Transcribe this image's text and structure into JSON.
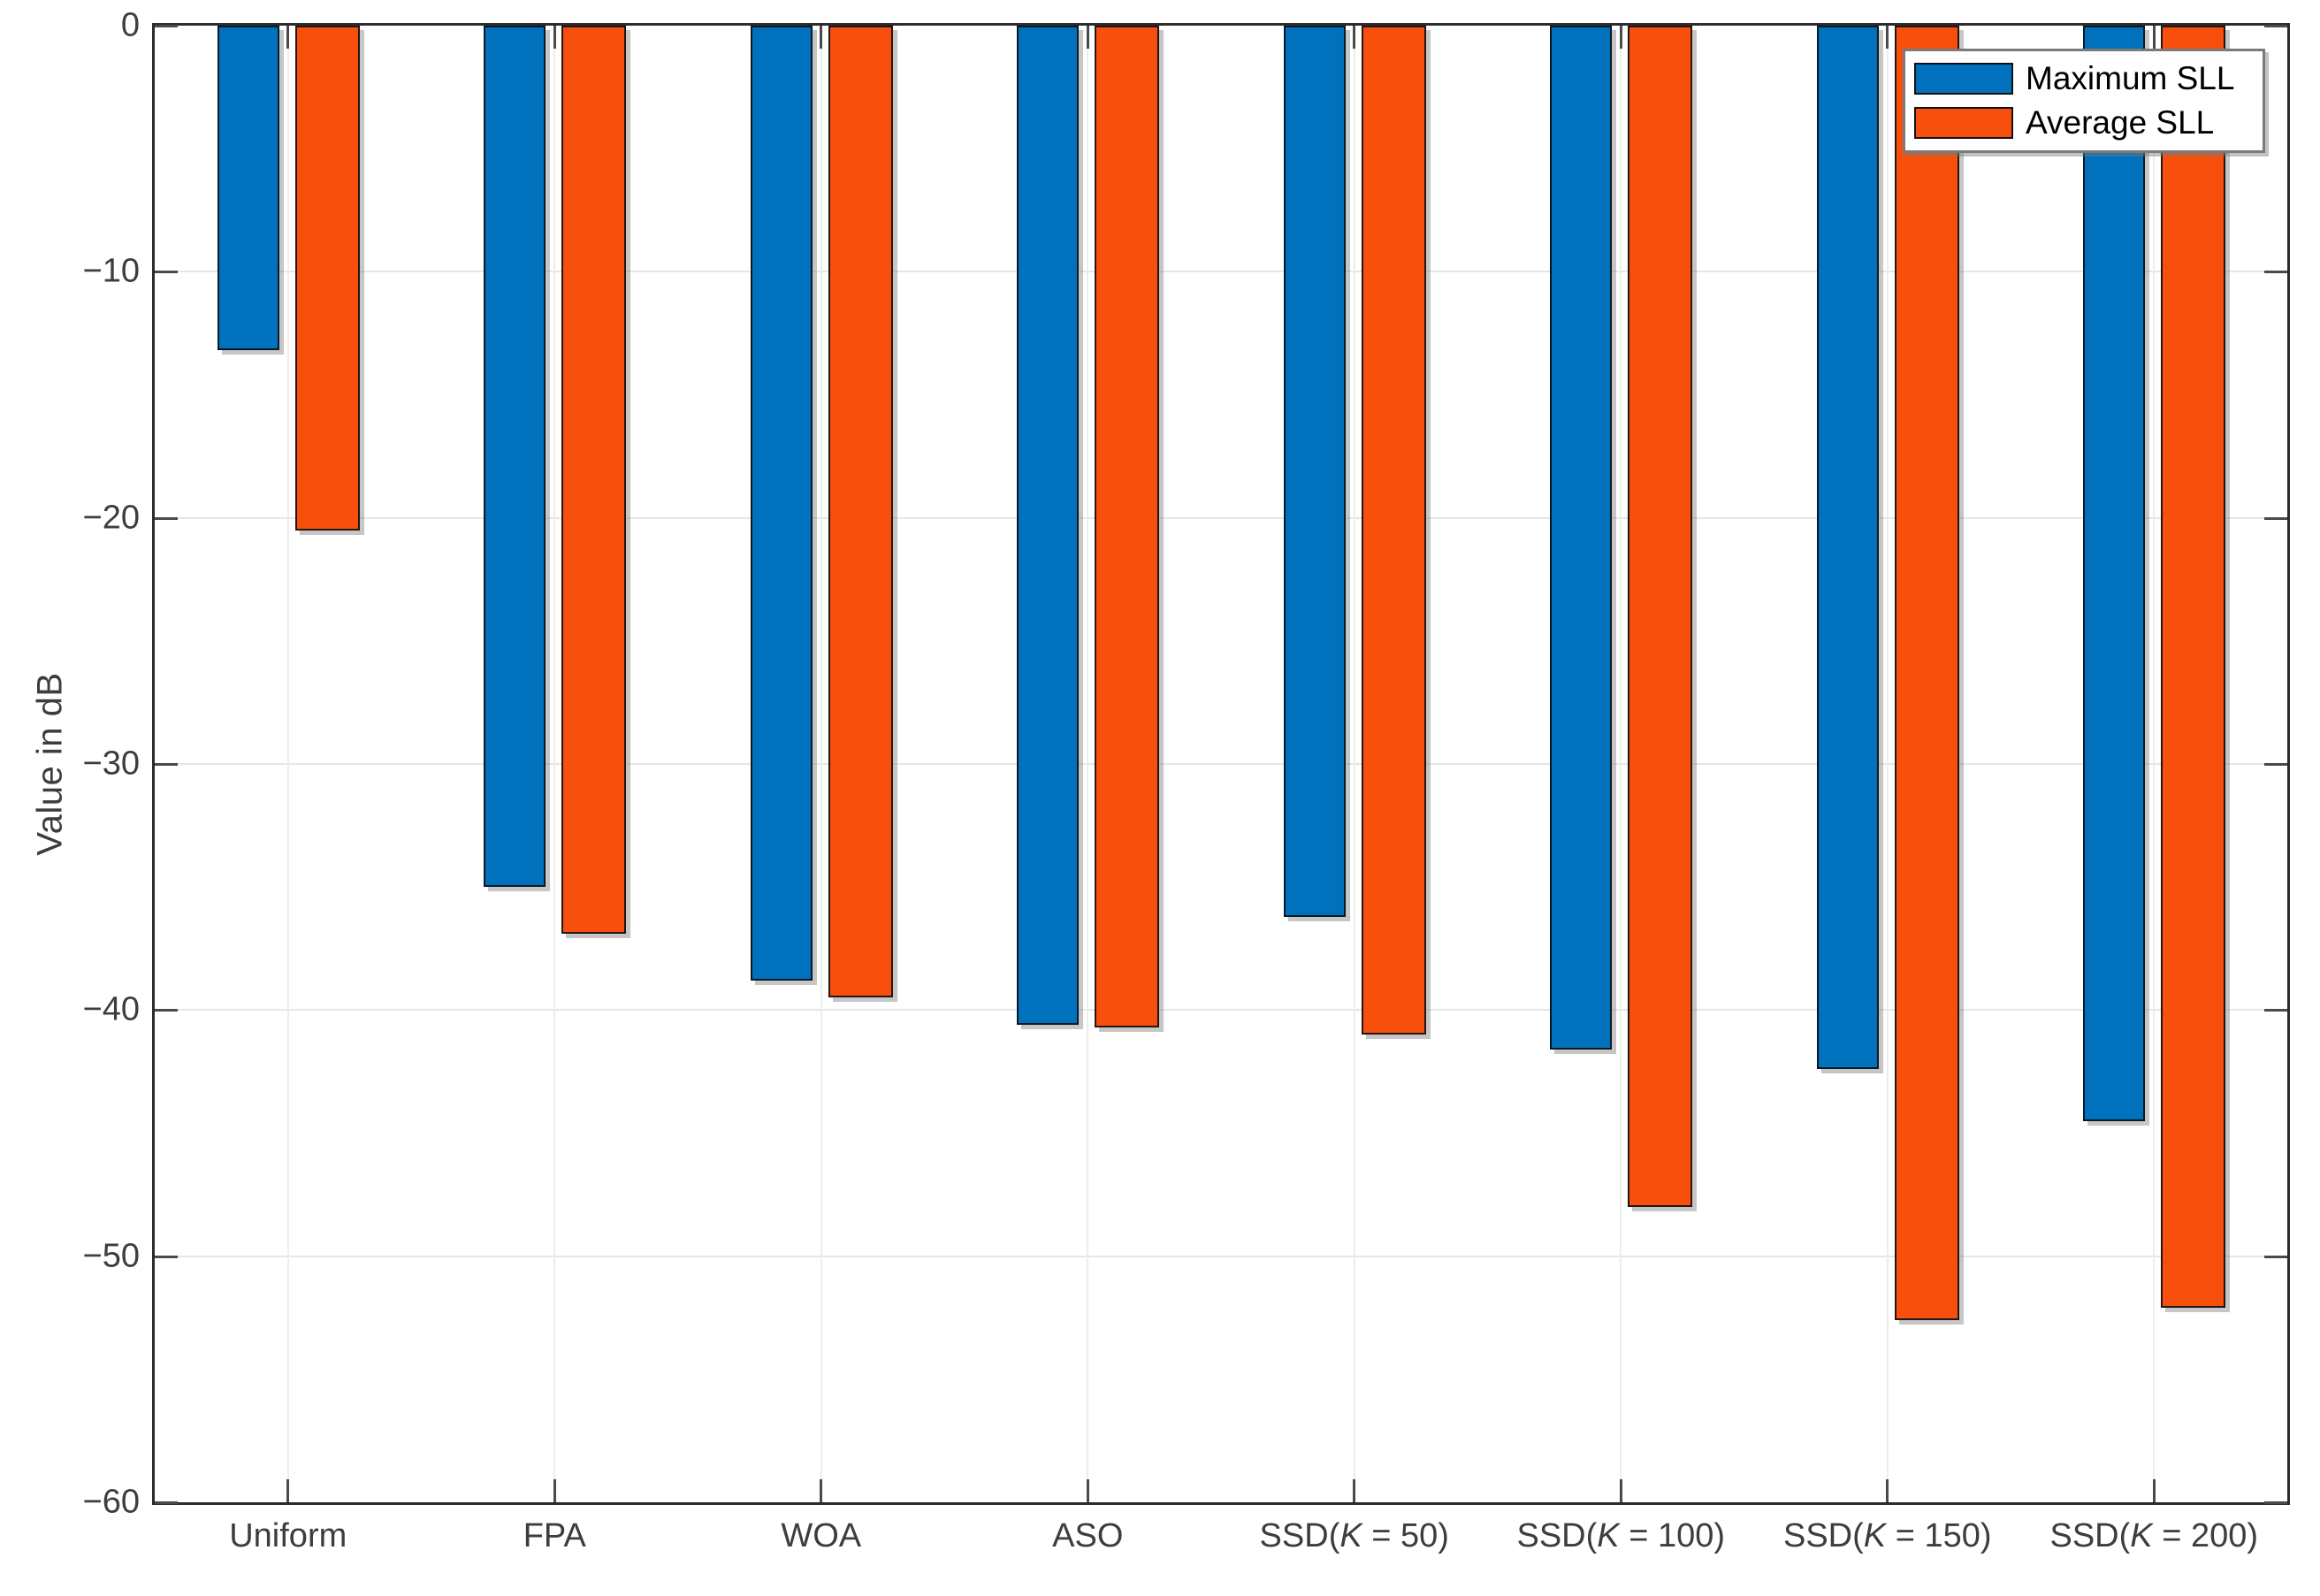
{
  "chart_data": {
    "type": "bar",
    "title": "",
    "ylabel": "Value in dB",
    "xlabel": "",
    "ylim": [
      -60,
      0
    ],
    "yticks": [
      0,
      -10,
      -20,
      -30,
      -40,
      -50,
      -60
    ],
    "ytick_labels": [
      "0",
      "−10",
      "−20",
      "−30",
      "−40",
      "−50",
      "−60"
    ],
    "categories": [
      "Uniform",
      "FPA",
      "WOA",
      "ASO",
      "SSD(K = 50)",
      "SSD(K = 100)",
      "SSD(K = 150)",
      "SSD(K = 200)"
    ],
    "series": [
      {
        "name": "Maximum SLL",
        "color": "#0072BD",
        "values": [
          -13.2,
          -35.0,
          -38.8,
          -40.6,
          -36.2,
          -41.6,
          -42.4,
          -44.5
        ]
      },
      {
        "name": "Average SLL",
        "color": "#F7500D",
        "values": [
          -20.5,
          -36.9,
          -39.5,
          -40.7,
          -41.0,
          -48.0,
          -52.6,
          -52.1
        ]
      }
    ],
    "grid": true,
    "legend_position": "top-right"
  }
}
